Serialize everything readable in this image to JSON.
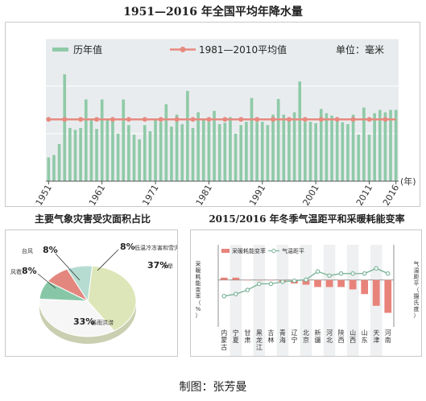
{
  "header": {
    "title": "1951—2016 年全国平均年降水量"
  },
  "credit": "制图：张芳曼",
  "colors": {
    "bar": "#8fcaa8",
    "avgline": "#e78a80",
    "heating_bar": "#e8837a",
    "temp_line": "#7fb69b",
    "panel_bg": "#e9ecee"
  },
  "chart_data": [
    {
      "type": "bar",
      "title": "1951—2016 年全国平均年降水量",
      "x": [
        1951,
        1952,
        1953,
        1954,
        1955,
        1956,
        1957,
        1958,
        1959,
        1960,
        1961,
        1962,
        1963,
        1964,
        1965,
        1966,
        1967,
        1968,
        1969,
        1970,
        1971,
        1972,
        1973,
        1974,
        1975,
        1976,
        1977,
        1978,
        1979,
        1980,
        1981,
        1982,
        1983,
        1984,
        1985,
        1986,
        1987,
        1988,
        1989,
        1990,
        1991,
        1992,
        1993,
        1994,
        1995,
        1996,
        1997,
        1998,
        1999,
        2000,
        2001,
        2002,
        2003,
        2004,
        2005,
        2006,
        2007,
        2008,
        2009,
        2010,
        2011,
        2012,
        2013,
        2014,
        2015,
        2016
      ],
      "series": [
        {
          "name": "历年值",
          "type": "bar",
          "values": [
            550,
            555,
            578,
            725,
            612,
            608,
            612,
            672,
            630,
            610,
            672,
            628,
            628,
            600,
            672,
            618,
            598,
            588,
            618,
            605,
            630,
            625,
            662,
            615,
            640,
            620,
            690,
            612,
            645,
            628,
            625,
            648,
            620,
            623,
            635,
            600,
            618,
            625,
            675,
            625,
            625,
            618,
            640,
            673,
            640,
            630,
            645,
            710,
            625,
            625,
            622,
            652,
            643,
            638,
            628,
            624,
            620,
            640,
            598,
            655,
            598,
            643,
            650,
            645,
            650,
            650
          ]
        },
        {
          "name": "1981—2010平均值",
          "type": "line",
          "values": [
            630,
            630,
            630,
            630,
            630,
            630,
            630,
            630,
            630,
            630,
            630,
            630,
            630,
            630,
            630,
            630,
            630,
            630,
            630,
            630,
            630,
            630,
            630,
            630,
            630,
            630,
            630,
            630,
            630,
            630,
            630,
            630,
            630,
            630,
            630,
            630,
            630,
            630,
            630,
            630,
            630,
            630,
            630,
            630,
            630,
            630,
            630,
            630,
            630,
            630,
            630,
            630,
            630,
            630,
            630,
            630,
            630,
            630,
            630,
            630,
            630,
            630,
            630,
            630,
            630,
            630
          ]
        }
      ],
      "yticks": [
        500,
        600,
        700,
        800
      ],
      "ylim": [
        500,
        800
      ],
      "xticks": [
        "1951",
        "1961",
        "1971",
        "1981",
        "1991",
        "2001",
        "2011",
        "2016"
      ],
      "xunit": "(年)",
      "unit": "单位：毫米",
      "grid": true
    },
    {
      "type": "pie",
      "title": "主要气象灾害受灾面积占比",
      "slices": [
        {
          "name": "干旱",
          "value": 37,
          "label": "37%",
          "color": "#dde6b8"
        },
        {
          "name": "暴雨洪涝",
          "value": 33,
          "label": "33%",
          "color": "#f6f6f6"
        },
        {
          "name": "风雹",
          "value": 8,
          "label": "8%",
          "color": "#87c7a7"
        },
        {
          "name": "台风",
          "value": 8,
          "label": "8%",
          "color": "#e3877e"
        },
        {
          "name": "低温冷冻害和雪灾",
          "value": 8,
          "label": "8%",
          "color": "#b6dcd2"
        }
      ]
    },
    {
      "type": "bar",
      "title": "2015/2016 年冬季气温距平和采暖耗能变率",
      "categories": [
        "内蒙古",
        "宁夏",
        "甘肃",
        "黑龙江",
        "吉林",
        "青海",
        "辽宁",
        "北京",
        "新疆",
        "河北",
        "陕西",
        "山西",
        "山东",
        "天津",
        "河南"
      ],
      "series": [
        {
          "name": "采暖耗能变率",
          "type": "bar",
          "axis": "left",
          "values": [
            1.0,
            1.0,
            0.0,
            0.0,
            0.0,
            -1.0,
            -1.5,
            -2.0,
            -3.0,
            -3.0,
            -3.0,
            -4.0,
            -6.0,
            -11.0,
            -14.0
          ]
        },
        {
          "name": "气温距平",
          "type": "line",
          "axis": "right",
          "values": [
            -0.5,
            -0.4,
            -0.2,
            0.1,
            0.1,
            0.2,
            0.25,
            0.3,
            0.7,
            0.5,
            0.6,
            0.6,
            0.6,
            0.85,
            0.6
          ]
        }
      ],
      "ylabel_left": "采暖耗能变率（%）",
      "ylabel_right": "气温距平（摄氏度）",
      "yticks_left": [
        15,
        10,
        5,
        0,
        -5,
        -10,
        -15,
        -20
      ],
      "yticks_right": [
        "2.0",
        "1.0",
        "0",
        "-1.0",
        "-2.0"
      ],
      "ylim_left": [
        -20,
        15
      ],
      "ylim_right": [
        -2.0,
        2.0
      ]
    }
  ]
}
